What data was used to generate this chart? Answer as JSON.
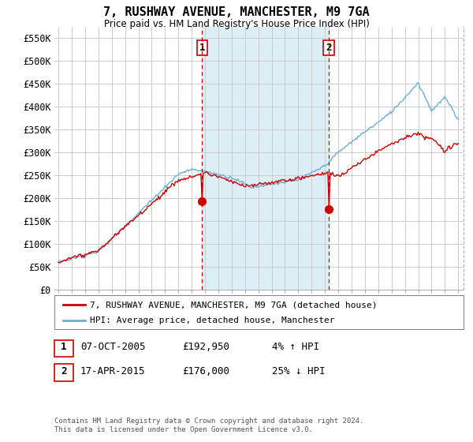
{
  "title": "7, RUSHWAY AVENUE, MANCHESTER, M9 7GA",
  "subtitle": "Price paid vs. HM Land Registry's House Price Index (HPI)",
  "ylabel_ticks": [
    "£0",
    "£50K",
    "£100K",
    "£150K",
    "£200K",
    "£250K",
    "£300K",
    "£350K",
    "£400K",
    "£450K",
    "£500K",
    "£550K"
  ],
  "ytick_values": [
    0,
    50000,
    100000,
    150000,
    200000,
    250000,
    300000,
    350000,
    400000,
    450000,
    500000,
    550000
  ],
  "ylim": [
    0,
    575000
  ],
  "sale1_date": "07-OCT-2005",
  "sale1_price": 192950,
  "sale1_pct": "4% ↑ HPI",
  "sale1_label": "1",
  "sale2_date": "17-APR-2015",
  "sale2_price": 176000,
  "sale2_pct": "25% ↓ HPI",
  "sale2_label": "2",
  "hpi_color": "#6ab0d4",
  "price_color": "#cc0000",
  "dashed_color": "#cc0000",
  "shade_color": "#ddeef7",
  "background_color": "#ffffff",
  "grid_color": "#cccccc",
  "legend_label_price": "7, RUSHWAY AVENUE, MANCHESTER, M9 7GA (detached house)",
  "legend_label_hpi": "HPI: Average price, detached house, Manchester",
  "footer": "Contains HM Land Registry data © Crown copyright and database right 2024.\nThis data is licensed under the Open Government Licence v3.0.",
  "sale1_x": 2005.79,
  "sale2_x": 2015.29
}
